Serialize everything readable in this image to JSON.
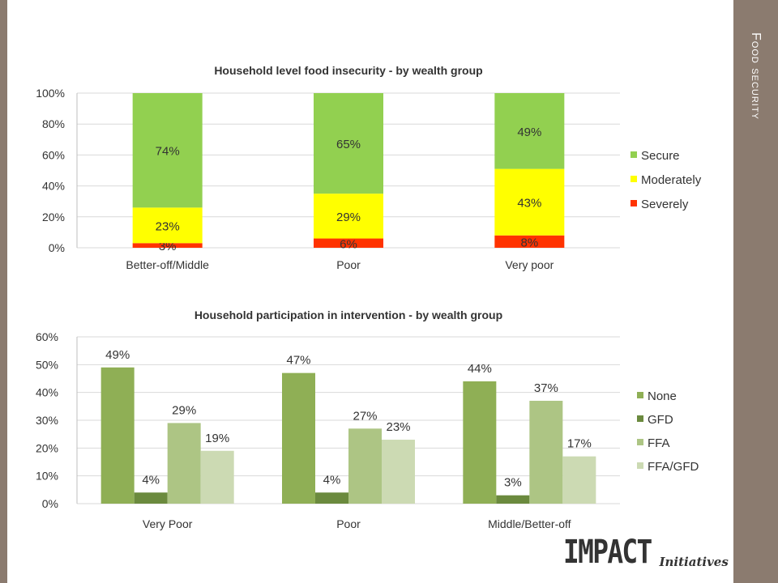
{
  "slide": {
    "side_title": "Food security",
    "logo_main": "IMPACT",
    "logo_sub": "Initiatives"
  },
  "chart_data": [
    {
      "type": "bar",
      "stacked": true,
      "title": "Household level food insecurity - by wealth group",
      "categories": [
        "Better-off/Middle",
        "Poor",
        "Very poor"
      ],
      "series": [
        {
          "name": "Severely",
          "color": "#ff3300",
          "values": [
            3,
            6,
            8
          ]
        },
        {
          "name": "Moderately",
          "color": "#ffff00",
          "values": [
            23,
            29,
            43
          ]
        },
        {
          "name": "Secure",
          "color": "#92d050",
          "values": [
            74,
            65,
            49
          ]
        }
      ],
      "legend_order": [
        "Secure",
        "Moderately",
        "Severely"
      ],
      "yticks": [
        "0%",
        "20%",
        "40%",
        "60%",
        "80%",
        "100%"
      ],
      "ylim": [
        0,
        100
      ],
      "data_labels": true,
      "grid": true,
      "legend_position": "right"
    },
    {
      "type": "bar",
      "stacked": false,
      "title": "Household participation in intervention - by wealth group",
      "categories": [
        "Very Poor",
        "Poor",
        "Middle/Better-off"
      ],
      "series": [
        {
          "name": "None",
          "color": "#8faf55",
          "values": [
            49,
            47,
            44
          ]
        },
        {
          "name": "GFD",
          "color": "#6b8a3e",
          "values": [
            4,
            4,
            3
          ]
        },
        {
          "name": "FFA",
          "color": "#adc584",
          "values": [
            29,
            27,
            37
          ]
        },
        {
          "name": "FFA/GFD",
          "color": "#ccdab3",
          "values": [
            19,
            23,
            17
          ]
        }
      ],
      "yticks": [
        "0%",
        "10%",
        "20%",
        "30%",
        "40%",
        "50%",
        "60%"
      ],
      "ylim": [
        0,
        60
      ],
      "data_labels": true,
      "grid": true,
      "legend_position": "right"
    }
  ]
}
